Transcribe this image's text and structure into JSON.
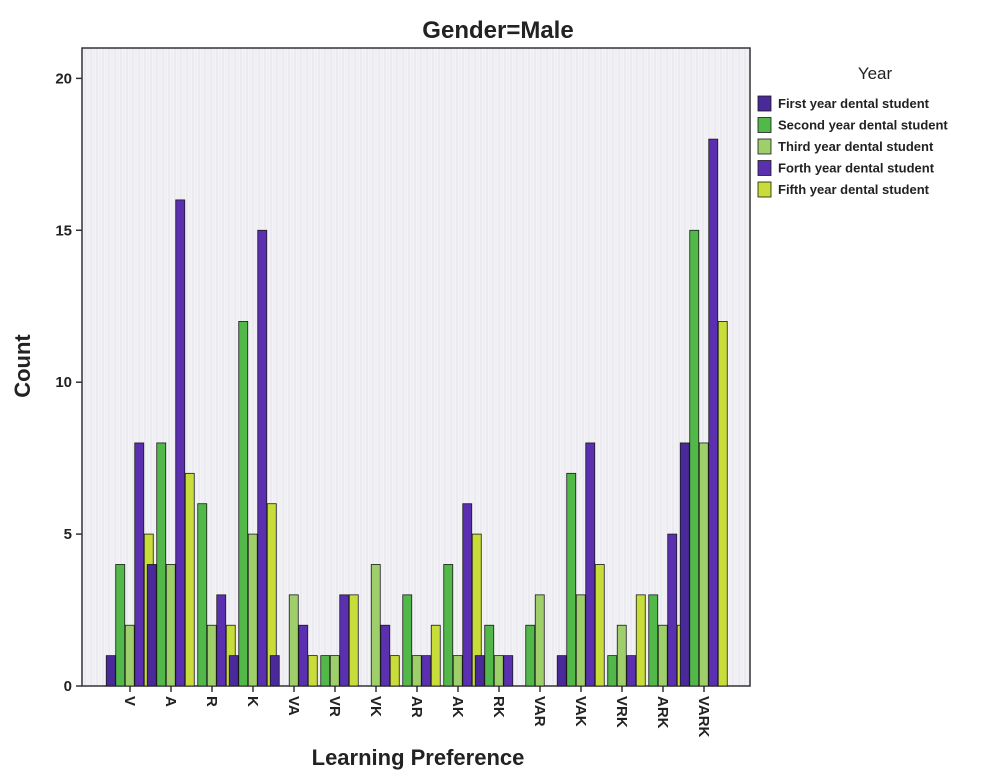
{
  "chart_data": {
    "type": "bar",
    "title": "Gender=Male",
    "xlabel": "Learning Preference",
    "ylabel": "Count",
    "ylim": [
      0,
      21
    ],
    "yticks": [
      0,
      5,
      10,
      15,
      20
    ],
    "grid": false,
    "legend_title": "Year",
    "legend_position": "top-right",
    "categories": [
      "V",
      "A",
      "R",
      "K",
      "VA",
      "VR",
      "VK",
      "AR",
      "AK",
      "RK",
      "VAR",
      "VAK",
      "VRK",
      "ARK",
      "VARK"
    ],
    "series": [
      {
        "name": "First year dental student",
        "color": "#4a2a9a",
        "values": [
          1,
          4,
          0,
          1,
          1,
          0,
          0,
          0,
          0,
          1,
          0,
          1,
          0,
          0,
          8
        ]
      },
      {
        "name": "Second year dental student",
        "color": "#52b84a",
        "values": [
          4,
          8,
          6,
          12,
          0,
          1,
          0,
          3,
          4,
          2,
          2,
          7,
          1,
          3,
          15
        ]
      },
      {
        "name": "Third year dental student",
        "color": "#9ecf6a",
        "values": [
          2,
          4,
          2,
          5,
          3,
          1,
          4,
          1,
          1,
          1,
          3,
          3,
          2,
          2,
          8
        ]
      },
      {
        "name": "Forth year dental student",
        "color": "#5a2fb0",
        "values": [
          8,
          16,
          3,
          15,
          2,
          3,
          2,
          1,
          6,
          1,
          0,
          8,
          1,
          5,
          18
        ]
      },
      {
        "name": "Fifth year dental student",
        "color": "#c8dc3a",
        "values": [
          5,
          7,
          2,
          6,
          1,
          3,
          1,
          2,
          5,
          0,
          0,
          4,
          3,
          2,
          12
        ]
      }
    ]
  }
}
